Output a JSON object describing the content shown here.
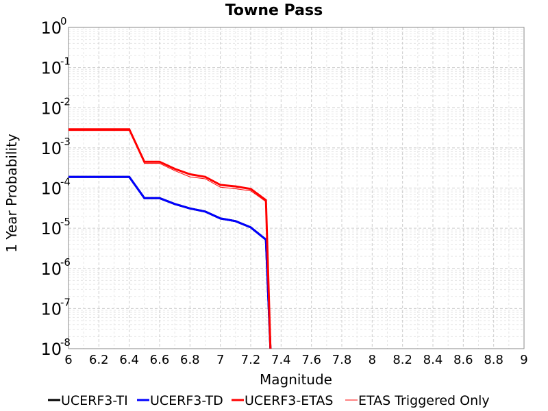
{
  "chart_data": {
    "type": "line",
    "title": "Towne Pass",
    "xlabel": "Magnitude",
    "ylabel": "1 Year Probability",
    "xlim": [
      6,
      9
    ],
    "ylim": [
      1e-08,
      1
    ],
    "yscale": "log",
    "grid": true,
    "legend_position": "bottom",
    "x_ticks": [
      "6",
      "6.2",
      "6.4",
      "6.6",
      "6.8",
      "7",
      "7.2",
      "7.4",
      "7.6",
      "7.8",
      "8",
      "8.2",
      "8.4",
      "8.6",
      "8.8",
      "9"
    ],
    "y_tick_exponents": [
      "0",
      "-1",
      "-2",
      "-3",
      "-4",
      "-5",
      "-6",
      "-7",
      "-8"
    ],
    "series": [
      {
        "name": "UCERF3-TI",
        "color": "#000000",
        "points": [
          [
            6.0,
            0.00019
          ],
          [
            6.4,
            0.00019
          ],
          [
            6.5,
            5.6e-05
          ],
          [
            6.6,
            5.6e-05
          ],
          [
            6.7,
            4e-05
          ],
          [
            6.8,
            3.1e-05
          ],
          [
            6.9,
            2.6e-05
          ],
          [
            7.0,
            1.75e-05
          ],
          [
            7.1,
            1.5e-05
          ],
          [
            7.2,
            1.05e-05
          ],
          [
            7.3,
            5.2e-06
          ],
          [
            7.33,
            1e-08
          ]
        ]
      },
      {
        "name": "UCERF3-TD",
        "color": "#0000ff",
        "points": [
          [
            6.0,
            0.00019
          ],
          [
            6.4,
            0.00019
          ],
          [
            6.5,
            5.6e-05
          ],
          [
            6.6,
            5.6e-05
          ],
          [
            6.7,
            4e-05
          ],
          [
            6.8,
            3.1e-05
          ],
          [
            6.9,
            2.6e-05
          ],
          [
            7.0,
            1.75e-05
          ],
          [
            7.1,
            1.5e-05
          ],
          [
            7.2,
            1.05e-05
          ],
          [
            7.3,
            5.2e-06
          ],
          [
            7.33,
            1e-08
          ]
        ]
      },
      {
        "name": "UCERF3-ETAS",
        "color": "#ff0000",
        "points": [
          [
            6.0,
            0.0029
          ],
          [
            6.4,
            0.0029
          ],
          [
            6.5,
            0.00045
          ],
          [
            6.6,
            0.00045
          ],
          [
            6.7,
            0.0003
          ],
          [
            6.8,
            0.00022
          ],
          [
            6.9,
            0.00019
          ],
          [
            7.0,
            0.00012
          ],
          [
            7.1,
            0.00011
          ],
          [
            7.2,
            9.5e-05
          ],
          [
            7.3,
            5e-05
          ],
          [
            7.33,
            1e-08
          ]
        ]
      },
      {
        "name": "ETAS Triggered Only",
        "color": "#ff0000",
        "points": [
          [
            6.0,
            0.0027
          ],
          [
            6.4,
            0.0027
          ],
          [
            6.5,
            0.00041
          ],
          [
            6.6,
            0.00041
          ],
          [
            6.7,
            0.00027
          ],
          [
            6.8,
            0.00019
          ],
          [
            6.9,
            0.00017
          ],
          [
            7.0,
            0.000105
          ],
          [
            7.1,
            9.6e-05
          ],
          [
            7.2,
            8.5e-05
          ],
          [
            7.3,
            4.6e-05
          ],
          [
            7.33,
            1e-08
          ]
        ]
      }
    ]
  }
}
